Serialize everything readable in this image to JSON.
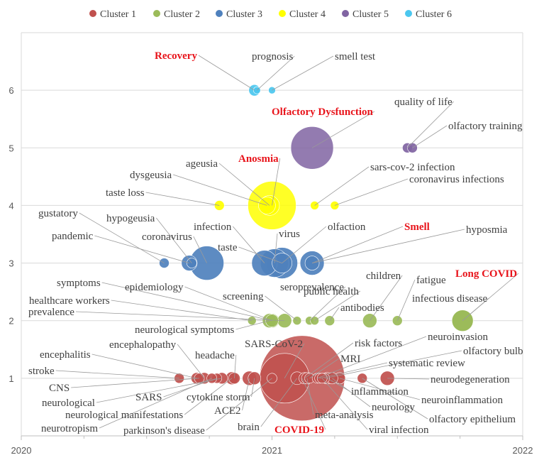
{
  "chart_data": {
    "type": "scatter",
    "subtype": "bubble",
    "title": "",
    "xlabel": "",
    "ylabel": "",
    "xlim": [
      2020,
      2022
    ],
    "ylim": [
      0,
      7
    ],
    "x_ticks": [
      2020,
      2021,
      2022
    ],
    "y_ticks": [
      1,
      2,
      3,
      4,
      5,
      6
    ],
    "grid": "horizontal",
    "legend_position": "top",
    "series": [
      {
        "name": "Cluster 1",
        "color": "#c0504d",
        "cluster": 1
      },
      {
        "name": "Cluster 2",
        "color": "#9bbb59",
        "cluster": 2
      },
      {
        "name": "Cluster 3",
        "color": "#4f81bd",
        "cluster": 3
      },
      {
        "name": "Cluster 4",
        "color": "#ffff00",
        "cluster": 4
      },
      {
        "name": "Cluster 5",
        "color": "#8064a2",
        "cluster": 5
      },
      {
        "name": "Cluster 6",
        "color": "#4bc7ef",
        "cluster": 6
      }
    ],
    "points": [
      {
        "label": "Recovery",
        "cluster": 6,
        "x": 2020.93,
        "y": 6,
        "size": 8,
        "highlight": true
      },
      {
        "label": "prognosis",
        "cluster": 6,
        "x": 2020.94,
        "y": 6,
        "size": 5
      },
      {
        "label": "smell test",
        "cluster": 6,
        "x": 2021.0,
        "y": 6,
        "size": 5
      },
      {
        "label": "Olfactory Dysfunction",
        "cluster": 5,
        "x": 2021.16,
        "y": 5,
        "size": 30,
        "highlight": true
      },
      {
        "label": "quality of life",
        "cluster": 5,
        "x": 2021.54,
        "y": 5,
        "size": 7
      },
      {
        "label": "olfactory training",
        "cluster": 5,
        "x": 2021.56,
        "y": 5,
        "size": 7
      },
      {
        "label": "dysgeusia",
        "cluster": 4,
        "x": 2020.98,
        "y": 4,
        "size": 12
      },
      {
        "label": "ageusia",
        "cluster": 4,
        "x": 2020.99,
        "y": 4,
        "size": 14
      },
      {
        "label": "Anosmia",
        "cluster": 4,
        "x": 2021.0,
        "y": 4,
        "size": 34,
        "highlight": true
      },
      {
        "label": "taste loss",
        "cluster": 4,
        "x": 2020.79,
        "y": 4,
        "size": 7
      },
      {
        "label": "sars-cov-2 infection",
        "cluster": 4,
        "x": 2021.17,
        "y": 4,
        "size": 6
      },
      {
        "label": "coronavirus infections",
        "cluster": 4,
        "x": 2021.25,
        "y": 4,
        "size": 6
      },
      {
        "label": "gustatory",
        "cluster": 3,
        "x": 2020.57,
        "y": 3,
        "size": 7
      },
      {
        "label": "hypogeusia",
        "cluster": 3,
        "x": 2020.68,
        "y": 3,
        "size": 7
      },
      {
        "label": "pandemic",
        "cluster": 3,
        "x": 2020.67,
        "y": 3,
        "size": 11
      },
      {
        "label": "coronavirus",
        "cluster": 3,
        "x": 2020.74,
        "y": 3,
        "size": 24
      },
      {
        "label": "infection",
        "cluster": 3,
        "x": 2020.97,
        "y": 3,
        "size": 18
      },
      {
        "label": "virus",
        "cluster": 3,
        "x": 2021.01,
        "y": 3,
        "size": 20
      },
      {
        "label": "taste",
        "cluster": 3,
        "x": 2021.04,
        "y": 3,
        "size": 22
      },
      {
        "label": "olfaction",
        "cluster": 3,
        "x": 2021.04,
        "y": 3,
        "size": 14
      },
      {
        "label": "Smell",
        "cluster": 3,
        "x": 2021.16,
        "y": 3,
        "size": 17,
        "highlight": true
      },
      {
        "label": "hyposmia",
        "cluster": 3,
        "x": 2021.16,
        "y": 3,
        "size": 10
      },
      {
        "label": "symptoms",
        "cluster": 2,
        "x": 2021.0,
        "y": 2,
        "size": 10
      },
      {
        "label": "epidemiology",
        "cluster": 2,
        "x": 2021.0,
        "y": 2,
        "size": 9
      },
      {
        "label": "healthcare workers",
        "cluster": 2,
        "x": 2020.92,
        "y": 2,
        "size": 6
      },
      {
        "label": "prevalence",
        "cluster": 2,
        "x": 2021.05,
        "y": 2,
        "size": 10
      },
      {
        "label": "screening",
        "cluster": 2,
        "x": 2021.1,
        "y": 2,
        "size": 6
      },
      {
        "label": "seroprevalence",
        "cluster": 2,
        "x": 2021.15,
        "y": 2,
        "size": 6
      },
      {
        "label": "public health",
        "cluster": 2,
        "x": 2021.17,
        "y": 2,
        "size": 6
      },
      {
        "label": "antibodies",
        "cluster": 2,
        "x": 2021.23,
        "y": 2,
        "size": 7
      },
      {
        "label": "children",
        "cluster": 2,
        "x": 2021.39,
        "y": 2,
        "size": 10
      },
      {
        "label": "fatigue",
        "cluster": 2,
        "x": 2021.5,
        "y": 2,
        "size": 7
      },
      {
        "label": "Long COVID",
        "cluster": 2,
        "x": 2021.76,
        "y": 2,
        "size": 15,
        "highlight": true
      },
      {
        "label": "infectious disease",
        "cluster": 2,
        "x": 2021.76,
        "y": 2,
        "size": 15
      },
      {
        "label": "neurological symptoms",
        "cluster": 2,
        "x": 2020.99,
        "y": 2,
        "size": 10
      },
      {
        "label": "COVID-19",
        "cluster": 1,
        "x": 2021.12,
        "y": 1,
        "size": 60,
        "highlight": true
      },
      {
        "label": "SARS-CoV-2",
        "cluster": 1,
        "x": 2021.05,
        "y": 1,
        "size": 35
      },
      {
        "label": "encephalopathy",
        "cluster": 1,
        "x": 2020.73,
        "y": 1,
        "size": 8
      },
      {
        "label": "encephalitis",
        "cluster": 1,
        "x": 2020.7,
        "y": 1,
        "size": 8
      },
      {
        "label": "stroke",
        "cluster": 1,
        "x": 2020.63,
        "y": 1,
        "size": 7
      },
      {
        "label": "CNS",
        "cluster": 1,
        "x": 2020.71,
        "y": 1,
        "size": 7
      },
      {
        "label": "neurological",
        "cluster": 1,
        "x": 2020.8,
        "y": 1,
        "size": 8
      },
      {
        "label": "SARS",
        "cluster": 1,
        "x": 2020.78,
        "y": 1,
        "size": 7
      },
      {
        "label": "neurological manifestations",
        "cluster": 1,
        "x": 2020.84,
        "y": 1,
        "size": 9
      },
      {
        "label": "neurotropism",
        "cluster": 1,
        "x": 2020.76,
        "y": 1,
        "size": 7
      },
      {
        "label": "headache",
        "cluster": 1,
        "x": 2020.85,
        "y": 1,
        "size": 8
      },
      {
        "label": "cytokine storm",
        "cluster": 1,
        "x": 2020.93,
        "y": 1,
        "size": 9
      },
      {
        "label": "ACE2",
        "cluster": 1,
        "x": 2020.91,
        "y": 1,
        "size": 10
      },
      {
        "label": "parkinson's disease",
        "cluster": 1,
        "x": 2021.0,
        "y": 1,
        "size": 7
      },
      {
        "label": "brain",
        "cluster": 1,
        "x": 2021.1,
        "y": 1,
        "size": 9
      },
      {
        "label": "risk factors",
        "cluster": 1,
        "x": 2021.13,
        "y": 1,
        "size": 8
      },
      {
        "label": "MRI",
        "cluster": 1,
        "x": 2021.15,
        "y": 1,
        "size": 7
      },
      {
        "label": "neuroinvasion",
        "cluster": 1,
        "x": 2021.18,
        "y": 1,
        "size": 7
      },
      {
        "label": "systematic review",
        "cluster": 1,
        "x": 2021.19,
        "y": 1,
        "size": 7
      },
      {
        "label": "olfactory bulb",
        "cluster": 1,
        "x": 2021.21,
        "y": 1,
        "size": 7
      },
      {
        "label": "inflammation",
        "cluster": 1,
        "x": 2021.22,
        "y": 1,
        "size": 8
      },
      {
        "label": "neurodegeneration",
        "cluster": 1,
        "x": 2021.46,
        "y": 1,
        "size": 10
      },
      {
        "label": "neuroinflammation",
        "cluster": 1,
        "x": 2021.27,
        "y": 1,
        "size": 8
      },
      {
        "label": "neurology",
        "cluster": 1,
        "x": 2021.24,
        "y": 1,
        "size": 8
      },
      {
        "label": "olfactory epithelium",
        "cluster": 1,
        "x": 2021.36,
        "y": 1,
        "size": 7
      },
      {
        "label": "meta-analysis",
        "cluster": 1,
        "x": 2021.14,
        "y": 1,
        "size": 8
      },
      {
        "label": "viral infection",
        "cluster": 1,
        "x": 2021.2,
        "y": 1,
        "size": 7
      }
    ]
  }
}
